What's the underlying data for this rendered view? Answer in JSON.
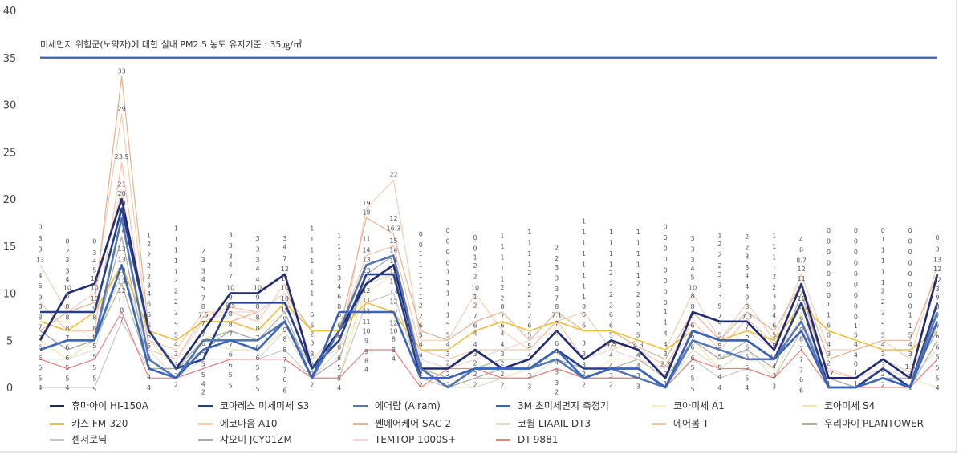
{
  "chart_data": {
    "type": "line",
    "title": "",
    "xlabel": "",
    "ylabel": "",
    "ylim": [
      0,
      40
    ],
    "yticks": [
      0,
      5,
      10,
      15,
      20,
      25,
      30,
      35,
      40
    ],
    "grid": false,
    "legend_position": "bottom",
    "reference_line": {
      "value": 35,
      "color": "#3461c1",
      "label": "미세먼지 위험군(노약자)에 대한 실내 PM2.5 농도 유지기준 : 35㎍/㎥"
    },
    "x": [
      1,
      2,
      3,
      4,
      5,
      6,
      7,
      8,
      9,
      10,
      11,
      12,
      13,
      14,
      15,
      16,
      17,
      18,
      19,
      20,
      21,
      22,
      23,
      24,
      25,
      26,
      27,
      28,
      29,
      30,
      31,
      32,
      33,
      34
    ],
    "series": [
      {
        "name": "휴마아이 HI-150A",
        "color": "#1f2a72",
        "width": 2.6,
        "values": [
          5,
          10,
          11,
          20,
          6,
          2,
          6,
          10,
          10,
          12,
          2,
          6,
          11,
          13,
          2,
          2,
          4,
          2,
          3,
          6,
          3,
          5,
          4,
          1,
          8,
          7,
          7,
          4,
          11,
          1,
          1,
          3,
          1,
          12
        ]
      },
      {
        "name": "코아레스 미세미세 S3",
        "color": "#263f8c",
        "width": 2.6,
        "values": [
          8,
          8,
          8,
          19,
          6,
          2,
          3,
          9,
          9,
          9,
          2,
          5,
          12,
          12,
          1,
          1,
          2,
          2,
          2,
          4,
          2,
          2,
          2,
          0,
          6,
          5,
          5,
          3,
          9,
          0,
          0,
          2,
          0,
          9
        ]
      },
      {
        "name": "에어람 (Airam)",
        "color": "#5577b5",
        "width": 2.6,
        "values": [
          4,
          5,
          5,
          18,
          3,
          1,
          5,
          5,
          5,
          7,
          1,
          6,
          13,
          14,
          2,
          0,
          2,
          2,
          2,
          3,
          1,
          2,
          1,
          0,
          5,
          4,
          3,
          3,
          7,
          0,
          0,
          1,
          0,
          8
        ]
      },
      {
        "name": "3M 초미세먼지 측정기",
        "color": "#3a64bd",
        "width": 2.6,
        "values": [
          4,
          5,
          5,
          13,
          2,
          1,
          4,
          5,
          4,
          7,
          1,
          8,
          8,
          8,
          1,
          1,
          2,
          2,
          2,
          4,
          1,
          2,
          2,
          0,
          6,
          5,
          5,
          3,
          6,
          0,
          0,
          1,
          0,
          7
        ]
      },
      {
        "name": "코아미세 A1",
        "color": "#f6eec4",
        "width": 1.2,
        "values": [
          7,
          7,
          5,
          13,
          4,
          3,
          5,
          7,
          6,
          8,
          1,
          3,
          10,
          12,
          0,
          1,
          0,
          1,
          1,
          2,
          1,
          3,
          3,
          1,
          3,
          3,
          3,
          2,
          9,
          0,
          0,
          2,
          1,
          0
        ]
      },
      {
        "name": "코아미세 S4",
        "color": "#f1e5b0",
        "width": 1.2,
        "values": [
          5,
          3,
          5,
          12,
          5,
          2,
          5,
          4,
          4,
          6,
          1,
          1,
          11,
          12,
          1,
          1,
          2,
          1,
          2,
          3,
          1,
          2,
          2,
          0,
          5,
          2,
          4,
          1,
          8,
          0,
          0,
          2,
          0,
          5
        ]
      },
      {
        "name": "카스 FM-320",
        "color": "#efbf3a",
        "width": 1.6,
        "values": [
          7,
          6,
          8,
          13,
          6,
          5,
          7,
          7,
          6,
          9,
          6,
          6,
          9,
          8,
          4,
          4,
          6,
          7,
          6,
          7,
          6,
          6,
          5,
          4,
          6,
          5,
          6,
          5,
          8.7,
          6,
          5,
          4,
          4,
          6
        ]
      },
      {
        "name": "에코마음 A10",
        "color": "#f5cdb0",
        "width": 1.2,
        "values": [
          13,
          8,
          10,
          29,
          5,
          4,
          8,
          8,
          7,
          11,
          3,
          4,
          19,
          22,
          5,
          5,
          10,
          6,
          4,
          7,
          8,
          4,
          5,
          4,
          10,
          5,
          9,
          5,
          12,
          4,
          4,
          5,
          3,
          13
        ]
      },
      {
        "name": "쎈에어케어 SAC-2",
        "color": "#e3b291",
        "width": 1.2,
        "values": [
          6,
          8,
          9,
          33,
          6,
          5,
          7,
          7,
          8,
          10,
          6,
          6,
          18,
          16.3,
          6,
          5,
          7,
          8,
          5,
          8,
          6,
          6,
          4.3,
          3,
          8,
          5,
          8,
          6,
          11,
          3,
          4,
          5,
          5,
          12
        ]
      },
      {
        "name": "코웜 LIAAIL DT3",
        "color": "#d9e0cc",
        "width": 1.2,
        "values": [
          3,
          3,
          4,
          13,
          4,
          1,
          3,
          3,
          3,
          6,
          1,
          4,
          11,
          12,
          1,
          0,
          0,
          1,
          1,
          3,
          1,
          1,
          1,
          0,
          4,
          2,
          4,
          1,
          6,
          0,
          0,
          1,
          0,
          5
        ]
      },
      {
        "name": "에어봄 T",
        "color": "#f7c5a6",
        "width": 1.2,
        "values": [
          9,
          6,
          6,
          23.9,
          4,
          3,
          7.5,
          8.5,
          8,
          10,
          3,
          6,
          14,
          15,
          4,
          3,
          4,
          4,
          4,
          7.1,
          3,
          4.8,
          4,
          2.3,
          7,
          4,
          7.3,
          4.6,
          9,
          1.7,
          1,
          3,
          1.6,
          7
        ]
      },
      {
        "name": "우리아이 PLANTOWER",
        "color": "#a8b79a",
        "width": 1.2,
        "values": [
          6,
          4,
          5,
          11,
          2,
          2,
          5,
          6,
          5,
          7,
          2,
          5,
          11,
          13,
          2,
          1,
          2,
          3,
          3,
          3,
          2,
          2,
          3,
          1,
          5,
          3,
          5,
          3,
          7,
          1,
          0,
          2,
          0,
          5
        ]
      },
      {
        "name": "센서로닉",
        "color": "#c6c6c6",
        "width": 1.2,
        "values": [
          0,
          0,
          0,
          7,
          2,
          1,
          2,
          3,
          3,
          4,
          1,
          1,
          9,
          10,
          1,
          0,
          1,
          1,
          1,
          2,
          1,
          1,
          1,
          0,
          3,
          1,
          2,
          1,
          6,
          0,
          0,
          1,
          0,
          3
        ]
      },
      {
        "name": "샤오미 JCY01ZM",
        "color": "#a9a9a9",
        "width": 1.2,
        "values": [
          6,
          4,
          5,
          16,
          2,
          2,
          4,
          6,
          5,
          8,
          1,
          3,
          12,
          14,
          2,
          0,
          1,
          2,
          2,
          3,
          1,
          1,
          1,
          0,
          5,
          3,
          4,
          2,
          10,
          1,
          0,
          1,
          1,
          6
        ]
      },
      {
        "name": "TEMTOP 1000S+",
        "color": "#f1d3db",
        "width": 1.2,
        "values": [
          8,
          8,
          10,
          21,
          5,
          3,
          7,
          8,
          8,
          10,
          3,
          6,
          13,
          14,
          3,
          2,
          3,
          4,
          5,
          6,
          3,
          4,
          3,
          2,
          6,
          5,
          6,
          4,
          7,
          2,
          1,
          2,
          1,
          4
        ]
      },
      {
        "name": "DT-9881",
        "color": "#ec7f7f",
        "width": 1.2,
        "values": [
          3,
          2,
          3,
          8,
          1,
          1,
          2,
          3,
          3,
          3,
          1,
          1,
          4,
          4,
          0,
          2,
          2,
          1,
          1,
          2,
          1,
          1,
          1,
          0,
          3,
          2,
          2,
          1,
          4,
          0,
          0,
          0,
          0,
          3
        ]
      }
    ]
  }
}
